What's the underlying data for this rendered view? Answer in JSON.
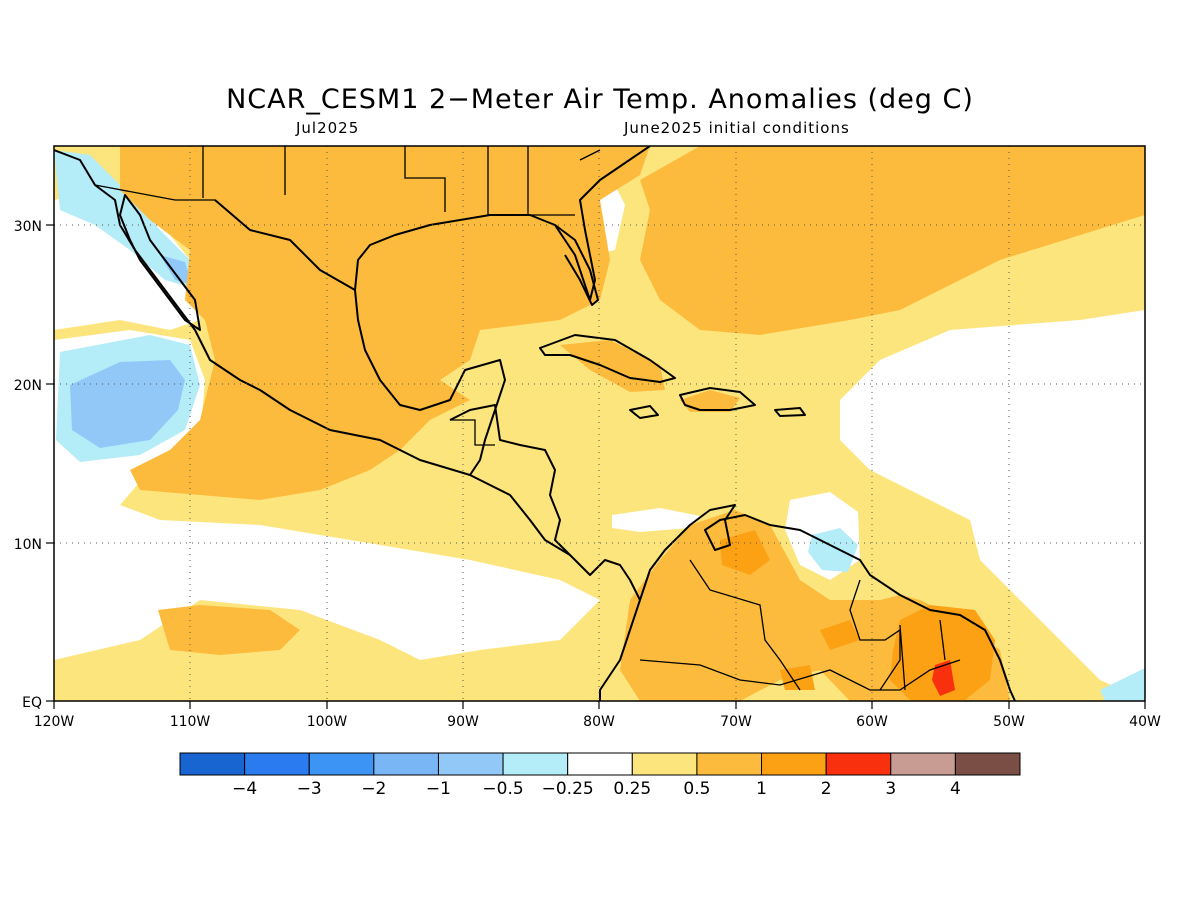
{
  "header": {
    "title": "NCAR_CESM1 2−Meter Air Temp. Anomalies (deg C)",
    "valid_month": "Jul2025",
    "init": "June2025 initial conditions"
  },
  "map": {
    "lon_range": [
      -120,
      -40
    ],
    "lat_range": [
      0,
      35
    ],
    "lon_labels": [
      "120W",
      "110W",
      "100W",
      "90W",
      "80W",
      "70W",
      "60W",
      "50W",
      "40W"
    ],
    "lat_labels": [
      "EQ",
      "10N",
      "20N",
      "30N"
    ]
  },
  "colorbar": {
    "colors": [
      "#1865d2",
      "#2a7bf0",
      "#3c94f5",
      "#79b6f6",
      "#92c8f7",
      "#b4ecf8",
      "#ffffff",
      "#fde57e",
      "#fcbb3d",
      "#fca114",
      "#f9300e",
      "#c89c93",
      "#7a4e45"
    ],
    "labels": [
      "−4",
      "−3",
      "−2",
      "−1",
      "−0.5",
      "−0.25",
      "0.25",
      "0.5",
      "1",
      "2",
      "3",
      "4"
    ]
  }
}
